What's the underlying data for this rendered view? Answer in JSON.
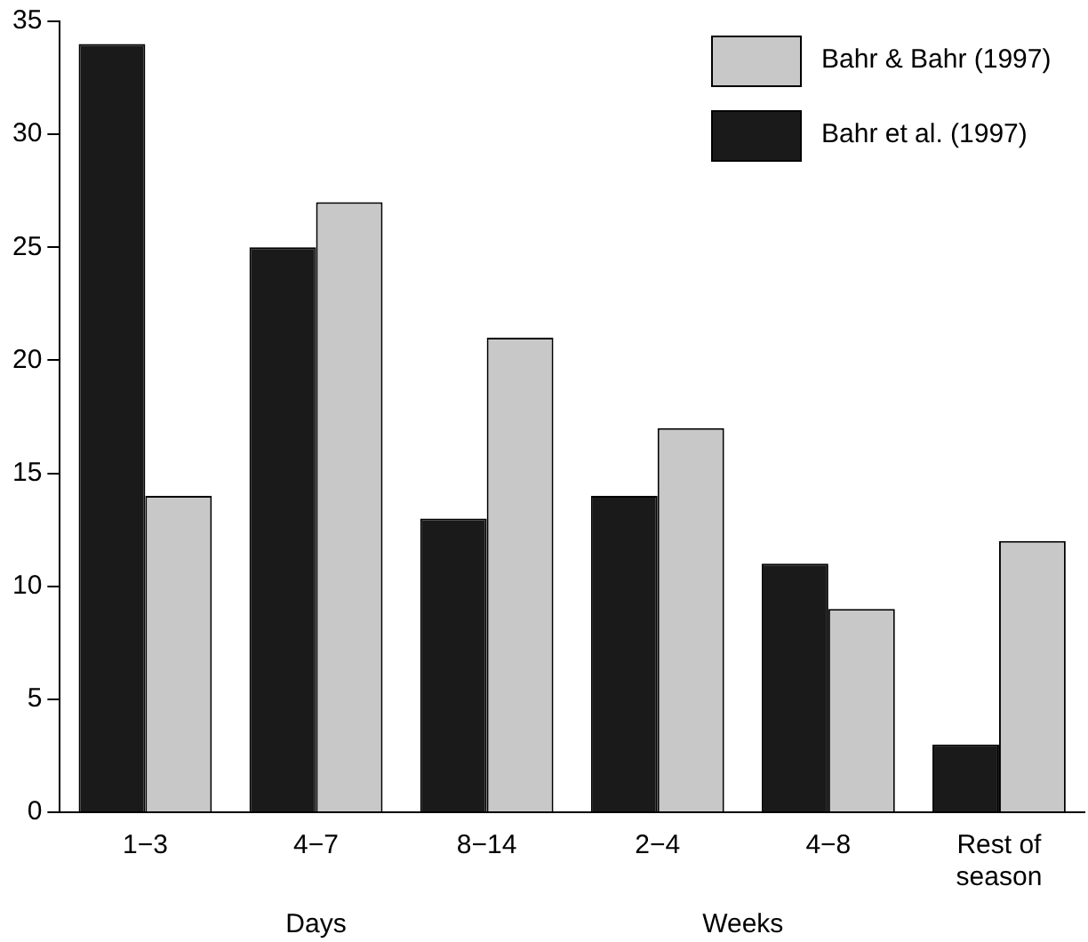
{
  "chart_data": {
    "type": "bar",
    "categories": [
      "1−3",
      "4−7",
      "8−14",
      "2−4",
      "4−8",
      "Rest of season"
    ],
    "series": [
      {
        "name": "Bahr et al. (1997)",
        "color": "#1a1a1a",
        "values": [
          34,
          25,
          13,
          14,
          11,
          3
        ]
      },
      {
        "name": "Bahr & Bahr (1997)",
        "color": "#c8c8c8",
        "values": [
          14,
          27,
          21,
          17,
          9,
          12
        ]
      }
    ],
    "ylim": [
      0,
      35
    ],
    "yticks": [
      0,
      5,
      10,
      15,
      20,
      25,
      30,
      35
    ],
    "grid": false,
    "legend": "top right",
    "annotations": [
      "Days",
      "Weeks"
    ]
  }
}
